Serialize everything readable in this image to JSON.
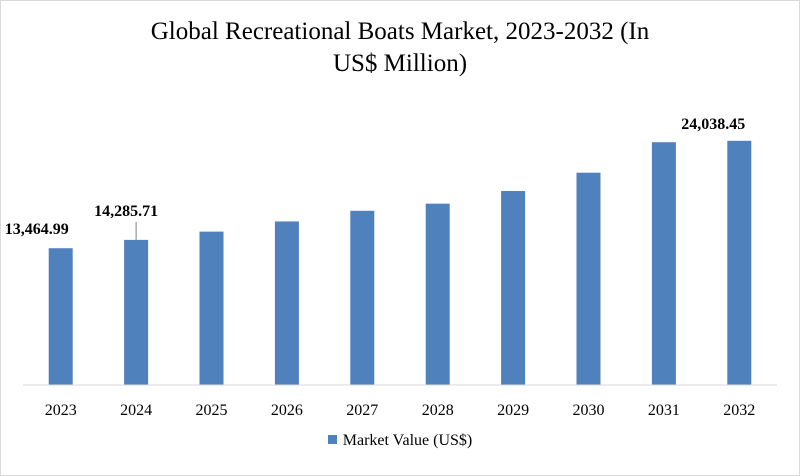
{
  "chart_data": {
    "type": "bar",
    "title_lines": [
      "Global Recreational Boats Market, 2023-2032 (In",
      "US$ Million)"
    ],
    "categories": [
      "2023",
      "2024",
      "2025",
      "2026",
      "2027",
      "2028",
      "2029",
      "2030",
      "2031",
      "2032"
    ],
    "series": [
      {
        "name": "Market Value (US$)",
        "values": [
          13464.99,
          14285.71,
          15100,
          16100,
          17150,
          17850,
          19100,
          20900,
          23900,
          24038.45
        ]
      }
    ],
    "data_labels": [
      {
        "index": 0,
        "text": "13,464.99"
      },
      {
        "index": 1,
        "text": "14,285.71"
      },
      {
        "index": 9,
        "text": "24,038.45"
      }
    ],
    "xlabel": "",
    "ylabel": "",
    "ylim": [
      0,
      25300
    ],
    "legend_position": "bottom",
    "grid": false,
    "bar_color": "#4f81bd",
    "axis_color": "#d9d9d9"
  }
}
